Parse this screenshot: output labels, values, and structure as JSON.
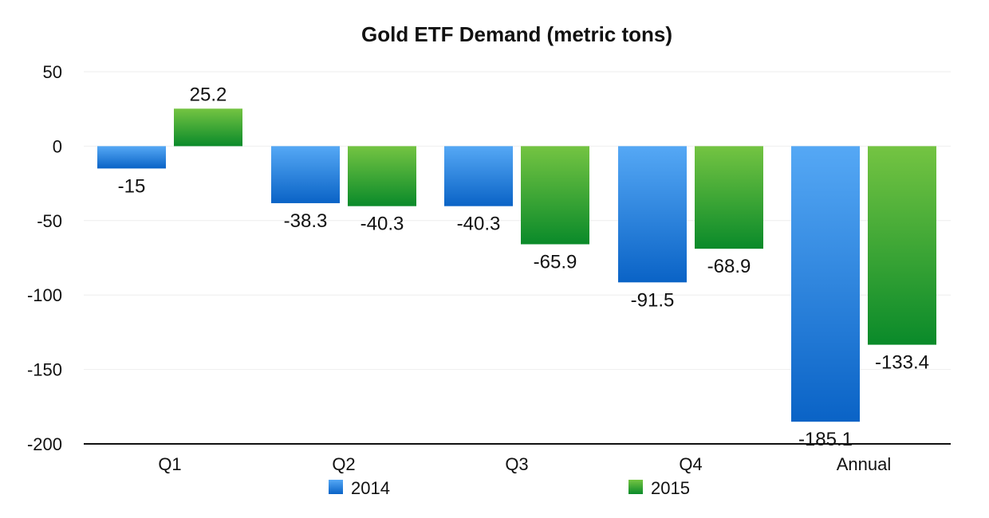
{
  "chart_data": {
    "type": "bar",
    "title": "Gold ETF Demand (metric tons)",
    "xlabel": "",
    "ylabel": "",
    "categories": [
      "Q1",
      "Q2",
      "Q3",
      "Q4",
      "Annual"
    ],
    "series": [
      {
        "name": "2014",
        "values": [
          -15,
          -38.3,
          -40.3,
          -91.5,
          -185.1
        ],
        "labels": [
          "-15",
          "-38.3",
          "-40.3",
          "-91.5",
          "-185.1"
        ],
        "color_top": "#55a8f5",
        "color_bottom": "#0a63c6"
      },
      {
        "name": "2015",
        "values": [
          25.2,
          -40.3,
          -65.9,
          -68.9,
          -133.4
        ],
        "labels": [
          "25.2",
          "-40.3",
          "-65.9",
          "-68.9",
          "-133.4"
        ],
        "color_top": "#74c442",
        "color_bottom": "#0a8a2a"
      }
    ],
    "ylim": [
      -200,
      50
    ],
    "yticks": [
      50,
      0,
      -50,
      -100,
      -150,
      -200
    ],
    "grid": true,
    "legend": "bottom"
  }
}
